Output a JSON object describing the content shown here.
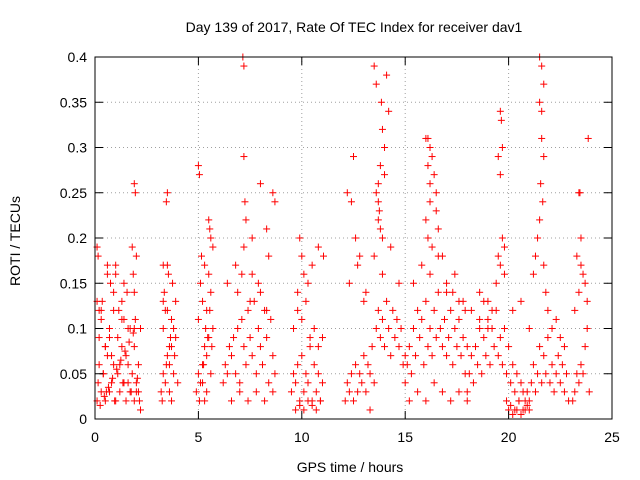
{
  "chart_data": {
    "type": "scatter",
    "title": "Day 139 of 2017, Rate Of TEC Index for receiver dav1",
    "xlabel": "GPS time / hours",
    "ylabel": "ROTI / TECUs",
    "xlim": [
      0,
      25
    ],
    "ylim": [
      0,
      0.4
    ],
    "x_ticks": [
      "0",
      "5",
      "10",
      "15",
      "20",
      "25"
    ],
    "y_ticks": [
      "0",
      "0.05",
      "0.1",
      "0.15",
      "0.2",
      "0.25",
      "0.3",
      "0.35",
      "0.4"
    ],
    "grid": true,
    "marker": "+",
    "color": "#ff0000",
    "series": [
      {
        "x": [
          0.1,
          0.15,
          0.2,
          0.3,
          0.4,
          0.5,
          0.6,
          0.7,
          0.8,
          0.9,
          1.0,
          1.1,
          1.2,
          1.3,
          1.4,
          1.5,
          1.6,
          1.7,
          1.8,
          1.9,
          2.0,
          2.1,
          2.2,
          0.2,
          0.3,
          0.5,
          0.7,
          0.9,
          1.1,
          1.3,
          1.5,
          1.7,
          1.9,
          2.1,
          0.25,
          0.45,
          0.65,
          0.85,
          1.05,
          1.25,
          1.45,
          1.65,
          1.85,
          2.05,
          0.35,
          0.75,
          1.15,
          1.55,
          1.95,
          0.55,
          0.95,
          1.35,
          1.75,
          2.15,
          0.15,
          0.6,
          1.0,
          1.4,
          1.8,
          2.2,
          0.4,
          0.8,
          1.2,
          1.6,
          2.0,
          0.1,
          0.3,
          0.9,
          1.4,
          1.9,
          1.9,
          1.95,
          2.0,
          1.85,
          1.9,
          0.1,
          0.2,
          0.6,
          1.0,
          1.3,
          1.6,
          0.7,
          0.5
        ],
        "y": [
          0.02,
          0.04,
          0.06,
          0.03,
          0.05,
          0.02,
          0.07,
          0.03,
          0.04,
          0.06,
          0.02,
          0.05,
          0.03,
          0.08,
          0.04,
          0.02,
          0.06,
          0.03,
          0.05,
          0.02,
          0.04,
          0.03,
          0.01,
          0.09,
          0.11,
          0.08,
          0.1,
          0.12,
          0.09,
          0.11,
          0.07,
          0.1,
          0.08,
          0.06,
          0.015,
          0.025,
          0.035,
          0.045,
          0.055,
          0.065,
          0.075,
          0.085,
          0.095,
          0.045,
          0.13,
          0.15,
          0.12,
          0.14,
          0.11,
          0.03,
          0.02,
          0.04,
          0.03,
          0.02,
          0.18,
          0.16,
          0.17,
          0.15,
          0.19,
          0.1,
          0.05,
          0.07,
          0.06,
          0.04,
          0.03,
          0.13,
          0.12,
          0.14,
          0.11,
          0.1,
          0.26,
          0.25,
          0.18,
          0.16,
          0.14,
          0.19,
          0.12,
          0.17,
          0.16,
          0.13,
          0.1,
          0.09,
          0.08
        ]
      },
      {
        "x": [
          3.2,
          3.3,
          3.4,
          3.5,
          3.6,
          3.7,
          3.8,
          3.9,
          4.0,
          3.3,
          3.5,
          3.7,
          3.9,
          3.25,
          3.45,
          3.65,
          3.85,
          3.35,
          3.55,
          3.75,
          3.3,
          3.4,
          3.6,
          3.8,
          3.5,
          3.45,
          3.5,
          3.3,
          3.6,
          3.7
        ],
        "y": [
          0.03,
          0.05,
          0.04,
          0.07,
          0.06,
          0.08,
          0.05,
          0.09,
          0.04,
          0.1,
          0.12,
          0.11,
          0.13,
          0.02,
          0.06,
          0.09,
          0.07,
          0.14,
          0.16,
          0.15,
          0.17,
          0.12,
          0.08,
          0.1,
          0.25,
          0.24,
          0.17,
          0.13,
          0.03,
          0.02
        ]
      },
      {
        "x": [
          4.9,
          5.0,
          5.1,
          5.2,
          5.3,
          5.4,
          5.5,
          5.6,
          5.7,
          5.0,
          5.2,
          5.4,
          5.6,
          5.05,
          5.25,
          5.45,
          5.65,
          5.1,
          5.3,
          5.5,
          5.15,
          5.35,
          5.55,
          5.2,
          5.4,
          5.0,
          5.05,
          5.5,
          5.55,
          5.6,
          5.7,
          5.3
        ],
        "y": [
          0.03,
          0.05,
          0.04,
          0.06,
          0.08,
          0.07,
          0.09,
          0.05,
          0.1,
          0.11,
          0.13,
          0.12,
          0.14,
          0.02,
          0.06,
          0.09,
          0.08,
          0.15,
          0.17,
          0.16,
          0.18,
          0.1,
          0.12,
          0.04,
          0.03,
          0.28,
          0.27,
          0.22,
          0.21,
          0.2,
          0.19,
          0.02
        ]
      },
      {
        "x": [
          6.2,
          6.3,
          6.4,
          6.5,
          6.6,
          6.7,
          6.8,
          6.9,
          7.0,
          7.1,
          7.2,
          7.3,
          7.4,
          7.5,
          7.6,
          7.7,
          7.8,
          7.9,
          8.0,
          8.1,
          8.2,
          8.3,
          8.4,
          8.5,
          8.6,
          8.7,
          6.4,
          6.8,
          7.2,
          7.6,
          8.0,
          8.4,
          6.6,
          7.0,
          7.4,
          7.8,
          8.2,
          8.6,
          7.15,
          7.2,
          7.2,
          7.25,
          7.3,
          7.6,
          8.0,
          8.6,
          8.7,
          8.3,
          6.9,
          7.1,
          7.5,
          7.9,
          8.3
        ],
        "y": [
          0.04,
          0.06,
          0.05,
          0.08,
          0.07,
          0.09,
          0.05,
          0.1,
          0.04,
          0.11,
          0.08,
          0.06,
          0.12,
          0.09,
          0.07,
          0.13,
          0.05,
          0.1,
          0.08,
          0.06,
          0.12,
          0.09,
          0.04,
          0.11,
          0.07,
          0.05,
          0.15,
          0.17,
          0.19,
          0.16,
          0.14,
          0.18,
          0.02,
          0.03,
          0.02,
          0.03,
          0.02,
          0.03,
          0.4,
          0.39,
          0.29,
          0.24,
          0.22,
          0.2,
          0.26,
          0.25,
          0.24,
          0.21,
          0.14,
          0.16,
          0.13,
          0.15,
          0.12
        ]
      },
      {
        "x": [
          9.5,
          9.6,
          9.7,
          9.8,
          9.9,
          10.0,
          10.1,
          10.2,
          10.3,
          10.4,
          10.5,
          10.6,
          10.7,
          10.8,
          10.9,
          11.0,
          9.6,
          9.8,
          10.0,
          10.2,
          10.4,
          10.6,
          10.8,
          11.0,
          9.7,
          9.9,
          10.1,
          10.3,
          10.5,
          10.7,
          10.9,
          9.9,
          10.0,
          10.1,
          10.3,
          9.8,
          10.5,
          10.8,
          11.05
        ],
        "y": [
          0.03,
          0.05,
          0.04,
          0.06,
          0.02,
          0.07,
          0.03,
          0.05,
          0.04,
          0.08,
          0.02,
          0.06,
          0.03,
          0.05,
          0.02,
          0.04,
          0.1,
          0.12,
          0.11,
          0.13,
          0.09,
          0.1,
          0.08,
          0.09,
          0.01,
          0.015,
          0.01,
          0.02,
          0.015,
          0.01,
          0.02,
          0.2,
          0.18,
          0.16,
          0.15,
          0.14,
          0.17,
          0.19,
          0.18
        ]
      },
      {
        "x": [
          12.1,
          12.2,
          12.3,
          12.4,
          12.5,
          12.6,
          12.7,
          12.8,
          12.9,
          13.0,
          13.1,
          13.2,
          13.3,
          13.4,
          13.5,
          13.6,
          13.7,
          13.8,
          13.9,
          14.0,
          14.1,
          14.2,
          14.3,
          14.4,
          14.5,
          14.6,
          14.7,
          14.8,
          14.9,
          15.0,
          12.3,
          12.7,
          13.1,
          13.5,
          13.9,
          14.3,
          14.7,
          13.6,
          13.7,
          13.7,
          13.8,
          13.9,
          14.0,
          14.0,
          13.9,
          13.8,
          13.7,
          13.75,
          13.85,
          13.6,
          13.5,
          14.1,
          14.2,
          12.2,
          12.5,
          12.4,
          12.6,
          12.8,
          13.0,
          13.3
        ],
        "y": [
          0.02,
          0.04,
          0.03,
          0.05,
          0.02,
          0.06,
          0.03,
          0.05,
          0.04,
          0.07,
          0.03,
          0.06,
          0.05,
          0.08,
          0.04,
          0.1,
          0.12,
          0.09,
          0.11,
          0.08,
          0.13,
          0.1,
          0.07,
          0.12,
          0.09,
          0.11,
          0.08,
          0.1,
          0.06,
          0.07,
          0.15,
          0.17,
          0.14,
          0.18,
          0.16,
          0.19,
          0.15,
          0.25,
          0.24,
          0.22,
          0.21,
          0.2,
          0.27,
          0.3,
          0.32,
          0.28,
          0.26,
          0.23,
          0.35,
          0.37,
          0.39,
          0.38,
          0.34,
          0.25,
          0.29,
          0.24,
          0.2,
          0.18,
          0.13,
          0.01
        ]
      },
      {
        "x": [
          15.0,
          15.1,
          15.2,
          15.3,
          15.4,
          15.5,
          15.6,
          15.7,
          15.8,
          15.9,
          16.0,
          16.1,
          16.2,
          16.3,
          16.4,
          16.5,
          16.6,
          16.7,
          16.8,
          16.9,
          17.0,
          17.1,
          17.2,
          17.3,
          17.4,
          17.5,
          17.6,
          17.7,
          17.8,
          17.9,
          18.0,
          15.2,
          15.6,
          16.0,
          16.4,
          16.8,
          17.2,
          17.6,
          18.0,
          15.4,
          15.8,
          16.2,
          16.6,
          17.0,
          17.4,
          17.8,
          16.0,
          16.1,
          16.2,
          16.3,
          16.4,
          16.5,
          16.0,
          16.1,
          16.2,
          16.3,
          16.1,
          16.2,
          16.5,
          16.6,
          16.8,
          17.0,
          17.3,
          17.6,
          17.9
        ],
        "y": [
          0.04,
          0.06,
          0.08,
          0.05,
          0.1,
          0.07,
          0.12,
          0.09,
          0.11,
          0.06,
          0.13,
          0.08,
          0.1,
          0.07,
          0.12,
          0.09,
          0.14,
          0.1,
          0.08,
          0.11,
          0.07,
          0.09,
          0.12,
          0.06,
          0.1,
          0.08,
          0.11,
          0.07,
          0.09,
          0.05,
          0.08,
          0.02,
          0.03,
          0.02,
          0.04,
          0.03,
          0.02,
          0.03,
          0.02,
          0.15,
          0.17,
          0.16,
          0.18,
          0.14,
          0.16,
          0.13,
          0.31,
          0.31,
          0.3,
          0.29,
          0.27,
          0.25,
          0.22,
          0.2,
          0.24,
          0.19,
          0.28,
          0.26,
          0.23,
          0.21,
          0.18,
          0.15,
          0.14,
          0.13,
          0.12
        ]
      },
      {
        "x": [
          18.0,
          18.1,
          18.2,
          18.3,
          18.4,
          18.5,
          18.6,
          18.7,
          18.8,
          18.9,
          19.0,
          19.1,
          19.2,
          19.3,
          19.4,
          19.5,
          19.6,
          19.7,
          19.8,
          19.9,
          20.0,
          20.1,
          20.2,
          20.3,
          20.4,
          20.5,
          20.6,
          20.7,
          20.8,
          20.9,
          21.0,
          18.2,
          18.6,
          19.0,
          19.4,
          19.8,
          20.2,
          20.6,
          21.0,
          19.6,
          19.65,
          19.7,
          19.5,
          19.6,
          19.7,
          19.8,
          19.5,
          19.6,
          18.6,
          18.8,
          19.0,
          19.2,
          20.0,
          20.2,
          20.4,
          20.6,
          20.8,
          19.9,
          20.1,
          20.3,
          20.5,
          20.7,
          20.9
        ],
        "y": [
          0.03,
          0.05,
          0.07,
          0.04,
          0.08,
          0.06,
          0.1,
          0.05,
          0.09,
          0.07,
          0.11,
          0.06,
          0.1,
          0.08,
          0.12,
          0.07,
          0.09,
          0.06,
          0.1,
          0.05,
          0.08,
          0.04,
          0.06,
          0.03,
          0.05,
          0.02,
          0.04,
          0.03,
          0.02,
          0.03,
          0.01,
          0.12,
          0.14,
          0.13,
          0.15,
          0.16,
          0.12,
          0.13,
          0.1,
          0.34,
          0.33,
          0.3,
          0.29,
          0.27,
          0.2,
          0.19,
          0.18,
          0.17,
          0.11,
          0.13,
          0.1,
          0.12,
          0.01,
          0.005,
          0.01,
          0.005,
          0.01,
          0.02,
          0.015,
          0.01,
          0.02,
          0.01,
          0.015
        ]
      },
      {
        "x": [
          21.0,
          21.1,
          21.2,
          21.3,
          21.4,
          21.5,
          21.6,
          21.7,
          21.8,
          21.9,
          22.0,
          22.1,
          22.2,
          22.3,
          22.4,
          22.5,
          22.6,
          22.7,
          22.8,
          22.9,
          21.5,
          21.6,
          21.7,
          21.5,
          21.6,
          21.6,
          21.7,
          21.55,
          21.65,
          21.5,
          21.4,
          21.3,
          21.2,
          21.7,
          21.8,
          21.9,
          22.1,
          22.3,
          22.5,
          22.7
        ],
        "y": [
          0.02,
          0.04,
          0.06,
          0.03,
          0.05,
          0.08,
          0.04,
          0.07,
          0.05,
          0.09,
          0.04,
          0.06,
          0.03,
          0.05,
          0.07,
          0.04,
          0.06,
          0.03,
          0.05,
          0.02,
          0.4,
          0.39,
          0.37,
          0.35,
          0.34,
          0.31,
          0.29,
          0.26,
          0.24,
          0.22,
          0.2,
          0.18,
          0.16,
          0.17,
          0.14,
          0.12,
          0.1,
          0.11,
          0.09,
          0.08
        ]
      },
      {
        "x": [
          23.1,
          23.2,
          23.3,
          23.4,
          23.5,
          23.6,
          23.7,
          23.8,
          23.9,
          23.2,
          23.4,
          23.6,
          23.8,
          23.3,
          23.5,
          23.7,
          23.85,
          23.4,
          23.45,
          23.5
        ],
        "y": [
          0.02,
          0.03,
          0.05,
          0.04,
          0.06,
          0.05,
          0.08,
          0.1,
          0.03,
          0.12,
          0.14,
          0.16,
          0.13,
          0.18,
          0.17,
          0.15,
          0.31,
          0.25,
          0.25,
          0.2
        ]
      }
    ]
  }
}
